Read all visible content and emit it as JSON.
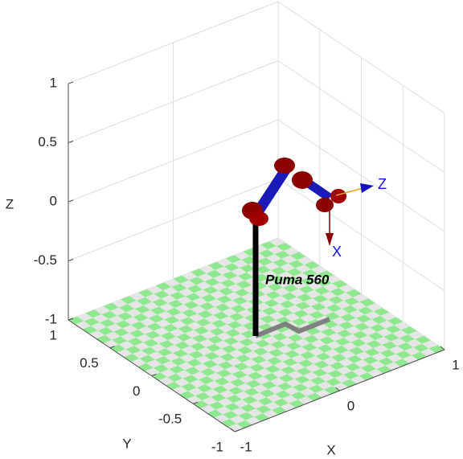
{
  "chart_data": {
    "type": "robot-3d",
    "annotation": "Puma 560",
    "frame_labels": [
      "Z",
      "X"
    ],
    "xlabel": "X",
    "ylabel": "Y",
    "zlabel": "Z",
    "xlim": [
      -1,
      1
    ],
    "ylim": [
      -1,
      1
    ],
    "zlim": [
      -1,
      1
    ],
    "xticks": [
      -1,
      0,
      1
    ],
    "yticks": [
      -1,
      -0.5,
      0,
      0.5,
      1
    ],
    "zticks": [
      -1,
      -0.5,
      0,
      0.5,
      1
    ],
    "grid": true
  }
}
